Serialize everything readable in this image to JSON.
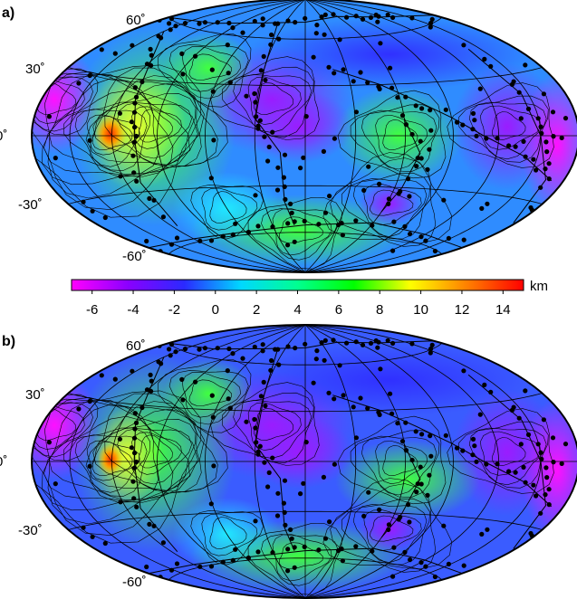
{
  "panels": [
    {
      "label": "a)",
      "lat_labels": [
        "60˚",
        "30˚",
        "0˚",
        "-30˚",
        "-60˚"
      ]
    },
    {
      "label": "b)",
      "lat_labels": [
        "60˚",
        "30˚",
        "0˚",
        "-30˚",
        "-60˚"
      ]
    }
  ],
  "colorbar": {
    "unit": "km",
    "tick_labels": [
      "-6",
      "-4",
      "-2",
      "0",
      "2",
      "4",
      "6",
      "8",
      "10",
      "12",
      "14"
    ],
    "range": [
      -7,
      15
    ],
    "colors": [
      "#ff00ff",
      "#8a00ff",
      "#2a2aff",
      "#00d8ff",
      "#00ff90",
      "#00ff00",
      "#ffff00",
      "#ff8000",
      "#ff0000"
    ]
  },
  "projection": "Hammer-Aitoff (global)",
  "graticule_deg": 30
}
